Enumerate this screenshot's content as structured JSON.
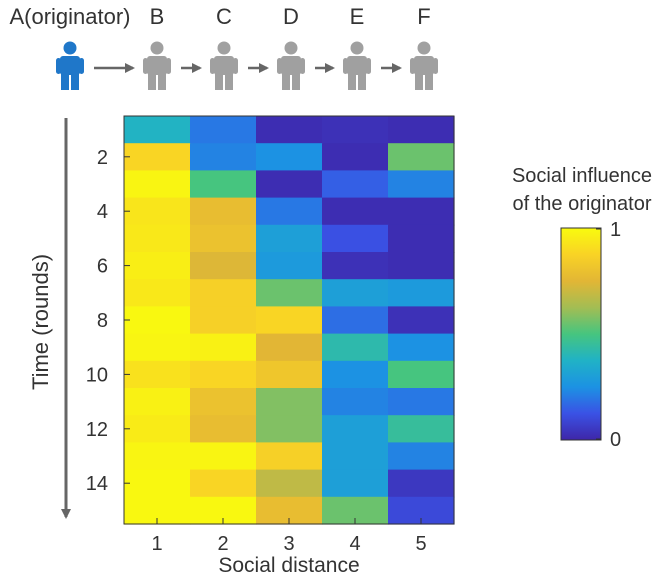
{
  "chain": {
    "people": [
      {
        "label": "A(originator)",
        "highlight": true
      },
      {
        "label": "B",
        "highlight": false
      },
      {
        "label": "C",
        "highlight": false
      },
      {
        "label": "D",
        "highlight": false
      },
      {
        "label": "E",
        "highlight": false
      },
      {
        "label": "F",
        "highlight": false
      }
    ],
    "highlight_color": "#1f77c9",
    "person_color": "#a0a0a0",
    "arrow_color": "#666666"
  },
  "colorbar": {
    "title_line1": "Social influence",
    "title_line2": "of the originator",
    "max_label": "1",
    "min_label": "0",
    "colormap": [
      "#3e26a8",
      "#3a52e5",
      "#1c92e3",
      "#20b2c6",
      "#46c57f",
      "#a3bd53",
      "#e2b635",
      "#f9d325",
      "#f9fb0e"
    ]
  },
  "time_arrow_color": "#666666",
  "chart_data": {
    "type": "heatmap",
    "title": "",
    "xlabel": "Social distance",
    "ylabel": "Time (rounds)",
    "x": [
      1,
      2,
      3,
      4,
      5
    ],
    "y": [
      1,
      2,
      3,
      4,
      5,
      6,
      7,
      8,
      9,
      10,
      11,
      12,
      13,
      14,
      15
    ],
    "xticks": [
      "1",
      "2",
      "3",
      "4",
      "5"
    ],
    "yticks": [
      "2",
      "4",
      "6",
      "8",
      "10",
      "12",
      "14"
    ],
    "ytick_values": [
      2,
      4,
      6,
      8,
      10,
      12,
      14
    ],
    "y_direction": "down",
    "zlim": [
      0,
      1
    ],
    "values": [
      [
        0.38,
        0.2,
        0.02,
        0.03,
        0.02
      ],
      [
        0.88,
        0.22,
        0.25,
        0.02,
        0.55
      ],
      [
        0.98,
        0.5,
        0.02,
        0.15,
        0.22
      ],
      [
        0.93,
        0.78,
        0.2,
        0.02,
        0.02
      ],
      [
        0.94,
        0.8,
        0.3,
        0.12,
        0.02
      ],
      [
        0.96,
        0.74,
        0.28,
        0.03,
        0.02
      ],
      [
        0.94,
        0.86,
        0.55,
        0.3,
        0.28
      ],
      [
        0.99,
        0.86,
        0.88,
        0.18,
        0.03
      ],
      [
        0.98,
        0.97,
        0.75,
        0.42,
        0.25
      ],
      [
        0.92,
        0.88,
        0.82,
        0.25,
        0.5
      ],
      [
        0.97,
        0.8,
        0.58,
        0.22,
        0.2
      ],
      [
        0.95,
        0.78,
        0.58,
        0.3,
        0.45
      ],
      [
        0.98,
        0.98,
        0.86,
        0.3,
        0.22
      ],
      [
        0.99,
        0.88,
        0.68,
        0.3,
        0.05
      ],
      [
        0.99,
        0.99,
        0.78,
        0.55,
        0.1
      ]
    ]
  }
}
